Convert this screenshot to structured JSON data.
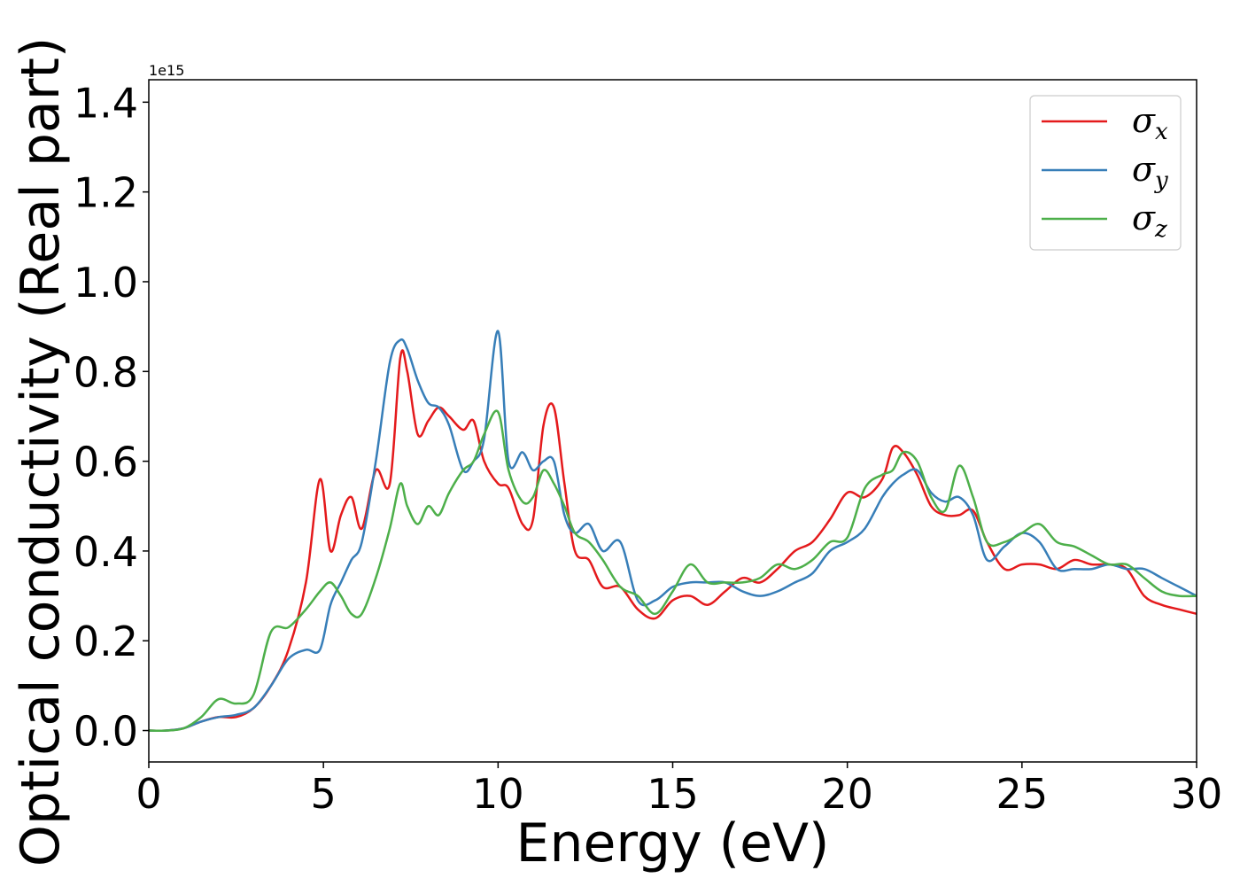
{
  "chart_data": {
    "type": "line",
    "title": "",
    "xlabel": "Energy (eV)",
    "ylabel": "Optical conductivity (Real part)",
    "y_offset_label": "1e15",
    "xlim": [
      0,
      30
    ],
    "ylim": [
      -0.07,
      1.45
    ],
    "x_ticks": [
      "0",
      "5",
      "10",
      "15",
      "20",
      "25",
      "30"
    ],
    "y_ticks": [
      "0.0",
      "0.2",
      "0.4",
      "0.6",
      "0.8",
      "1.0",
      "1.2",
      "1.4"
    ],
    "grid": false,
    "legend_position": "upper-right",
    "x": [
      0,
      0.5,
      1,
      1.5,
      2,
      2.5,
      3,
      3.5,
      4,
      4.5,
      4.9,
      5.2,
      5.5,
      5.8,
      6.1,
      6.5,
      6.9,
      7.2,
      7.4,
      7.7,
      8.0,
      8.3,
      8.6,
      9.0,
      9.3,
      9.6,
      10.0,
      10.3,
      10.7,
      11.0,
      11.3,
      11.6,
      11.9,
      12.2,
      12.6,
      13.0,
      13.5,
      14.0,
      14.5,
      15.0,
      15.5,
      16.0,
      16.5,
      17.0,
      17.5,
      18.0,
      18.5,
      19.0,
      19.5,
      20.0,
      20.5,
      21.0,
      21.3,
      21.6,
      22.0,
      22.4,
      22.8,
      23.2,
      23.6,
      24.0,
      24.5,
      25.0,
      25.5,
      26.0,
      26.5,
      27.0,
      27.5,
      28.0,
      28.5,
      29.0,
      29.5,
      30.0
    ],
    "series": [
      {
        "name": "σx",
        "color": "#e41a1c",
        "values": [
          0,
          0,
          0.005,
          0.02,
          0.03,
          0.03,
          0.05,
          0.1,
          0.18,
          0.33,
          0.56,
          0.4,
          0.48,
          0.52,
          0.45,
          0.58,
          0.55,
          0.83,
          0.8,
          0.66,
          0.69,
          0.72,
          0.7,
          0.67,
          0.69,
          0.6,
          0.55,
          0.54,
          0.46,
          0.47,
          0.68,
          0.72,
          0.55,
          0.4,
          0.38,
          0.32,
          0.32,
          0.27,
          0.25,
          0.29,
          0.3,
          0.28,
          0.31,
          0.34,
          0.33,
          0.36,
          0.4,
          0.42,
          0.47,
          0.53,
          0.52,
          0.56,
          0.63,
          0.62,
          0.57,
          0.5,
          0.48,
          0.48,
          0.49,
          0.42,
          0.36,
          0.37,
          0.37,
          0.36,
          0.38,
          0.37,
          0.37,
          0.36,
          0.3,
          0.28,
          0.27,
          0.26
        ]
      },
      {
        "name": "σy",
        "color": "#377eb8",
        "values": [
          0,
          0,
          0.005,
          0.02,
          0.03,
          0.035,
          0.05,
          0.1,
          0.16,
          0.18,
          0.18,
          0.28,
          0.33,
          0.38,
          0.42,
          0.6,
          0.82,
          0.87,
          0.85,
          0.78,
          0.73,
          0.72,
          0.68,
          0.58,
          0.6,
          0.65,
          0.89,
          0.6,
          0.62,
          0.58,
          0.6,
          0.6,
          0.48,
          0.44,
          0.46,
          0.4,
          0.42,
          0.29,
          0.29,
          0.32,
          0.33,
          0.33,
          0.33,
          0.31,
          0.3,
          0.31,
          0.33,
          0.35,
          0.4,
          0.42,
          0.45,
          0.52,
          0.55,
          0.57,
          0.58,
          0.53,
          0.51,
          0.52,
          0.48,
          0.38,
          0.41,
          0.44,
          0.42,
          0.36,
          0.36,
          0.36,
          0.37,
          0.36,
          0.36,
          0.34,
          0.32,
          0.3
        ]
      },
      {
        "name": "σz",
        "color": "#4daf4a",
        "values": [
          0,
          0,
          0.005,
          0.03,
          0.07,
          0.06,
          0.08,
          0.22,
          0.23,
          0.27,
          0.31,
          0.33,
          0.3,
          0.26,
          0.26,
          0.34,
          0.45,
          0.55,
          0.5,
          0.46,
          0.5,
          0.48,
          0.53,
          0.58,
          0.6,
          0.66,
          0.71,
          0.58,
          0.51,
          0.52,
          0.58,
          0.55,
          0.5,
          0.44,
          0.42,
          0.38,
          0.32,
          0.3,
          0.26,
          0.31,
          0.37,
          0.33,
          0.33,
          0.33,
          0.34,
          0.37,
          0.36,
          0.38,
          0.42,
          0.43,
          0.54,
          0.57,
          0.58,
          0.62,
          0.6,
          0.52,
          0.49,
          0.59,
          0.52,
          0.42,
          0.42,
          0.44,
          0.46,
          0.42,
          0.41,
          0.39,
          0.37,
          0.37,
          0.34,
          0.31,
          0.3,
          0.3
        ]
      }
    ]
  }
}
